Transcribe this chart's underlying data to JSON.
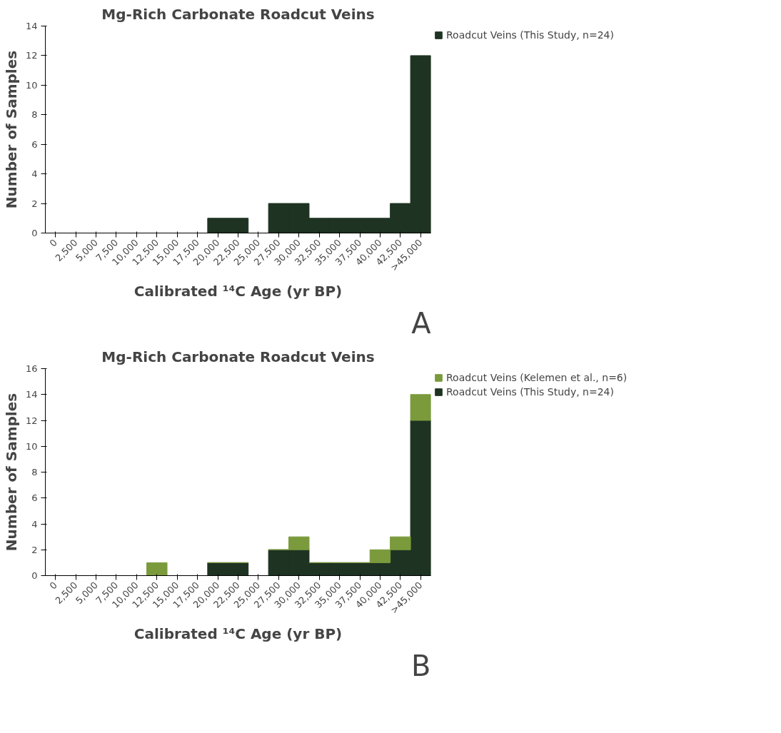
{
  "chart_data": [
    {
      "type": "bar",
      "title": "Mg-Rich Carbonate Roadcut Veins",
      "xlabel": "Calibrated ¹⁴C Age (yr BP)",
      "ylabel": "Number of Samples",
      "categories": [
        "0",
        "2,500",
        "5,000",
        "7,500",
        "10,000",
        "12,500",
        "15,000",
        "17,500",
        "20,000",
        "22,500",
        "25,000",
        "27,500",
        "30,000",
        "32,500",
        "35,000",
        "37,500",
        "40,000",
        "42,500",
        ">45,000"
      ],
      "series": [
        {
          "name": "Roadcut Veins (This Study, n=24)",
          "color": "#1e3322",
          "values": [
            0,
            0,
            0,
            0,
            0,
            0,
            0,
            0,
            1,
            1,
            0,
            2,
            2,
            1,
            1,
            1,
            1,
            2,
            12
          ]
        }
      ],
      "stacked": true,
      "ylim": [
        0,
        14
      ],
      "yticks": [
        0,
        2,
        4,
        6,
        8,
        10,
        12,
        14
      ],
      "grid": false,
      "legend": "top right",
      "annotations": [
        "A"
      ]
    },
    {
      "type": "bar",
      "title": "Mg-Rich Carbonate Roadcut Veins",
      "xlabel": "Calibrated ¹⁴C Age (yr BP)",
      "ylabel": "Number of Samples",
      "categories": [
        "0",
        "2,500",
        "5,000",
        "7,500",
        "10,000",
        "12,500",
        "15,000",
        "17,500",
        "20,000",
        "22,500",
        "25,000",
        "27,500",
        "30,000",
        "32,500",
        "35,000",
        "37,500",
        "40,000",
        "42,500",
        ">45,000"
      ],
      "series": [
        {
          "name": "Roadcut Veins (This Study, n=24)",
          "color": "#1e3322",
          "values": [
            0,
            0,
            0,
            0,
            0,
            0,
            0,
            0,
            1,
            1,
            0,
            2,
            2,
            1,
            1,
            1,
            1,
            2,
            12
          ]
        },
        {
          "name": "Roadcut Veins (Kelemen et al., n=6)",
          "color": "#7a9a3c",
          "values": [
            0,
            0,
            0,
            0,
            0,
            1,
            0,
            0,
            0,
            0,
            0,
            0,
            1,
            0,
            0,
            0,
            1,
            1,
            2
          ]
        }
      ],
      "stacked": true,
      "ylim": [
        0,
        16
      ],
      "yticks": [
        0,
        2,
        4,
        6,
        8,
        10,
        12,
        14,
        16
      ],
      "grid": false,
      "legend": "top right",
      "annotations": [
        "B"
      ]
    }
  ]
}
